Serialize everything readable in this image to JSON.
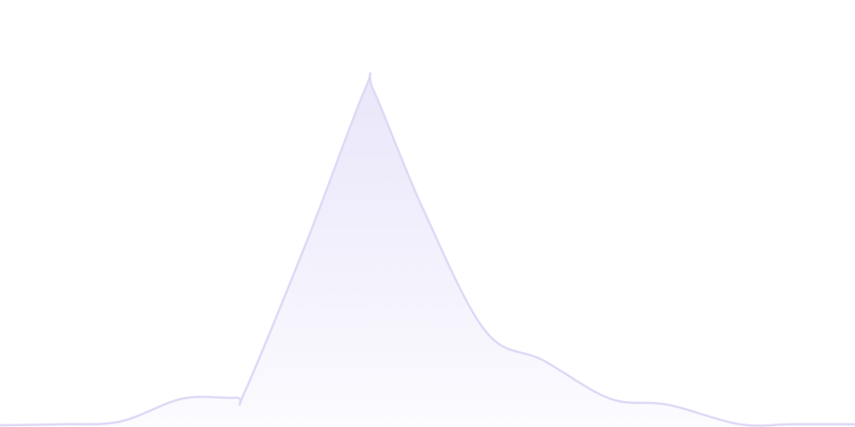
{
  "chart_data": {
    "type": "area",
    "x": [
      0,
      70,
      135,
      205,
      265,
      275,
      345,
      410,
      420,
      475,
      545,
      610,
      685,
      750,
      830,
      890,
      960
    ],
    "values": [
      0,
      0.3,
      1.1,
      7.9,
      8.2,
      10,
      55,
      100,
      99.2,
      64.3,
      28,
      19.3,
      7.9,
      6.1,
      0.3,
      0.3,
      0.3
    ],
    "xlim": [
      0,
      960
    ],
    "ylim": [
      0,
      100
    ],
    "color": "#ddd9f6",
    "fill": "#e9e6fa",
    "smooth": true
  }
}
